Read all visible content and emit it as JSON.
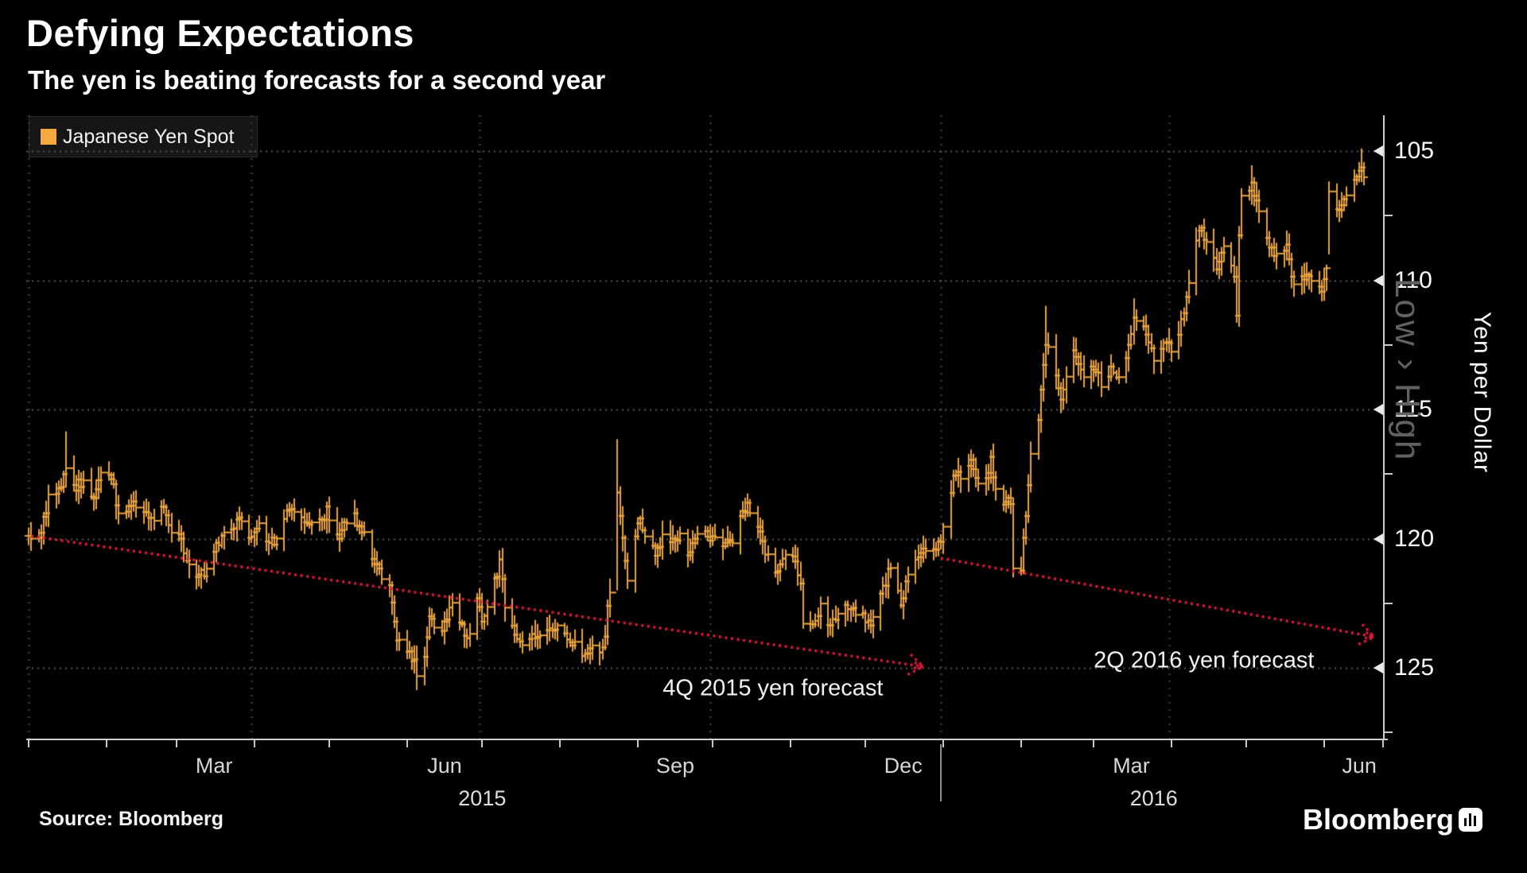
{
  "header": {
    "title": "Defying Expectations",
    "subtitle": "The yen is beating forecasts for a second year"
  },
  "legend": {
    "label": "Japanese Yen Spot"
  },
  "colors": {
    "background": "#000000",
    "series_orange": "#E8A33D",
    "legend_swatch": "#F5A93E",
    "forecast_red": "#E6173C",
    "grid_horizontal": "#5A5A5A",
    "grid_vertical": "#454545",
    "axis": "#CFCFCF"
  },
  "axes": {
    "y": {
      "title": "Yen per Dollar",
      "direction_label": "Low › High",
      "inverted": true,
      "ticks": [
        {
          "label": "105",
          "value": 105
        },
        {
          "label": "110",
          "value": 110
        },
        {
          "label": "115",
          "value": 115
        },
        {
          "label": "120",
          "value": 120
        },
        {
          "label": "125",
          "value": 125
        }
      ],
      "minor_tick_values": [
        107.5,
        112.5,
        117.5,
        122.5,
        127.5
      ]
    },
    "x": {
      "month_tick_days": [
        0,
        31,
        59,
        90,
        120,
        151,
        181,
        212,
        243,
        273,
        304,
        334,
        365,
        396,
        425,
        456,
        486,
        517
      ],
      "quarter_gridline_days": [
        0,
        89,
        180,
        272,
        364,
        455
      ],
      "month_labels": [
        {
          "label": "Mar",
          "mid_day": 74
        },
        {
          "label": "Jun",
          "mid_day": 166
        },
        {
          "label": "Sep",
          "mid_day": 258
        },
        {
          "label": "Dec",
          "mid_day": 349
        },
        {
          "label": "Mar",
          "mid_day": 440
        },
        {
          "label": "Jun",
          "mid_day": 531
        }
      ],
      "year_labels": [
        {
          "label": "2015",
          "mid_day": 181
        },
        {
          "label": "2016",
          "mid_day": 449
        }
      ],
      "year_divider_day": 364
    }
  },
  "annotations": {
    "forecast_2015_label": "4Q 2015 yen forecast",
    "forecast_2016_label": "2Q 2016 yen forecast"
  },
  "footer": {
    "source": "Source: Bloomberg",
    "brand": "Bloomberg"
  },
  "chart_data": {
    "type": "ohlc-bar",
    "title": "Defying Expectations",
    "subtitle": "The yen is beating forecasts for a second year",
    "series_name": "Japanese Yen Spot",
    "ylabel": "Yen per Dollar",
    "unit": "yen per dollar",
    "x_start": "2015-01-01",
    "x_end": "2016-06-17",
    "ylim": [
      103.6,
      127.6
    ],
    "y_axis_inverted_strong_yen_up": true,
    "grid": true,
    "anchors_day_close": [
      [
        0,
        119.9
      ],
      [
        2,
        120.4
      ],
      [
        5,
        119.7
      ],
      [
        8,
        118.4
      ],
      [
        11,
        118.3
      ],
      [
        15,
        117.3
      ],
      [
        18,
        118.0
      ],
      [
        22,
        117.8
      ],
      [
        26,
        118.3
      ],
      [
        29,
        117.5
      ],
      [
        33,
        117.6
      ],
      [
        36,
        119.0
      ],
      [
        41,
        118.7
      ],
      [
        44,
        118.6
      ],
      [
        47,
        118.9
      ],
      [
        50,
        119.4
      ],
      [
        54,
        118.8
      ],
      [
        57,
        119.6
      ],
      [
        61,
        120.0
      ],
      [
        64,
        121.1
      ],
      [
        68,
        121.4
      ],
      [
        71,
        121.3
      ],
      [
        75,
        120.3
      ],
      [
        78,
        119.9
      ],
      [
        82,
        119.5
      ],
      [
        85,
        119.2
      ],
      [
        89,
        120.1
      ],
      [
        92,
        119.6
      ],
      [
        96,
        120.1
      ],
      [
        99,
        120.0
      ],
      [
        103,
        119.1
      ],
      [
        106,
        118.9
      ],
      [
        110,
        119.4
      ],
      [
        113,
        119.2
      ],
      [
        117,
        119.4
      ],
      [
        119,
        118.9
      ],
      [
        121,
        120.1
      ],
      [
        124,
        119.9
      ],
      [
        127,
        119.4
      ],
      [
        130,
        119.2
      ],
      [
        133,
        119.7
      ],
      [
        137,
        120.7
      ],
      [
        140,
        121.3
      ],
      [
        144,
        121.7
      ],
      [
        147,
        123.9
      ],
      [
        150,
        124.1
      ],
      [
        154,
        124.8
      ],
      [
        155,
        125.3
      ],
      [
        158,
        124.6
      ],
      [
        160,
        122.9
      ],
      [
        162,
        123.5
      ],
      [
        165,
        123.4
      ],
      [
        169,
        122.6
      ],
      [
        172,
        123.3
      ],
      [
        176,
        123.8
      ],
      [
        179,
        122.5
      ],
      [
        181,
        123.1
      ],
      [
        184,
        122.3
      ],
      [
        188,
        121.0
      ],
      [
        190,
        122.5
      ],
      [
        194,
        123.9
      ],
      [
        197,
        124.2
      ],
      [
        201,
        123.6
      ],
      [
        204,
        123.9
      ],
      [
        208,
        123.6
      ],
      [
        211,
        123.2
      ],
      [
        215,
        124.1
      ],
      [
        218,
        124.2
      ],
      [
        222,
        124.4
      ],
      [
        225,
        124.2
      ],
      [
        229,
        124.4
      ],
      [
        232,
        122.0
      ],
      [
        235,
        118.4
      ],
      [
        237,
        119.9
      ],
      [
        239,
        121.7
      ],
      [
        243,
        119.2
      ],
      [
        246,
        119.8
      ],
      [
        250,
        120.5
      ],
      [
        253,
        120.0
      ],
      [
        257,
        119.9
      ],
      [
        260,
        120.0
      ],
      [
        264,
        120.6
      ],
      [
        267,
        119.9
      ],
      [
        271,
        119.9
      ],
      [
        273,
        120.0
      ],
      [
        277,
        120.2
      ],
      [
        281,
        120.3
      ],
      [
        284,
        119.2
      ],
      [
        287,
        118.8
      ],
      [
        291,
        119.5
      ],
      [
        295,
        120.8
      ],
      [
        298,
        121.4
      ],
      [
        302,
        120.8
      ],
      [
        305,
        120.6
      ],
      [
        308,
        121.6
      ],
      [
        309,
        123.1
      ],
      [
        313,
        123.2
      ],
      [
        316,
        122.6
      ],
      [
        320,
        123.4
      ],
      [
        323,
        122.9
      ],
      [
        327,
        122.6
      ],
      [
        330,
        122.8
      ],
      [
        334,
        123.1
      ],
      [
        336,
        123.3
      ],
      [
        340,
        122.3
      ],
      [
        344,
        121.0
      ],
      [
        348,
        122.6
      ],
      [
        351,
        121.3
      ],
      [
        355,
        120.9
      ],
      [
        358,
        120.3
      ],
      [
        363,
        120.3
      ],
      [
        365,
        119.6
      ],
      [
        369,
        117.7
      ],
      [
        372,
        117.5
      ],
      [
        376,
        117.0
      ],
      [
        379,
        117.8
      ],
      [
        383,
        117.6
      ],
      [
        384,
        116.9
      ],
      [
        387,
        118.8
      ],
      [
        391,
        118.6
      ],
      [
        392,
        118.8
      ],
      [
        393,
        121.1
      ],
      [
        396,
        121.1
      ],
      [
        399,
        117.9
      ],
      [
        400,
        116.9
      ],
      [
        403,
        115.4
      ],
      [
        406,
        112.4
      ],
      [
        409,
        113.3
      ],
      [
        412,
        114.5
      ],
      [
        414,
        113.9
      ],
      [
        417,
        112.9
      ],
      [
        421,
        113.9
      ],
      [
        425,
        113.3
      ],
      [
        428,
        114.0
      ],
      [
        432,
        113.5
      ],
      [
        435,
        113.8
      ],
      [
        439,
        112.7
      ],
      [
        441,
        111.4
      ],
      [
        445,
        111.9
      ],
      [
        449,
        113.1
      ],
      [
        453,
        112.4
      ],
      [
        456,
        112.6
      ],
      [
        460,
        111.7
      ],
      [
        463,
        110.3
      ],
      [
        466,
        108.4
      ],
      [
        468,
        108.1
      ],
      [
        471,
        108.8
      ],
      [
        474,
        109.4
      ],
      [
        477,
        108.8
      ],
      [
        481,
        109.8
      ],
      [
        482,
        111.5
      ],
      [
        483,
        108.1
      ],
      [
        484,
        106.9
      ],
      [
        488,
        106.4
      ],
      [
        491,
        107.2
      ],
      [
        494,
        108.4
      ],
      [
        498,
        109.1
      ],
      [
        502,
        108.6
      ],
      [
        505,
        110.2
      ],
      [
        509,
        109.8
      ],
      [
        512,
        110.0
      ],
      [
        516,
        110.6
      ],
      [
        518,
        109.6
      ],
      [
        519,
        106.6
      ],
      [
        523,
        107.4
      ],
      [
        526,
        106.9
      ],
      [
        530,
        106.0
      ],
      [
        532,
        105.6
      ],
      [
        533,
        105.9
      ]
    ],
    "spike_days": [
      {
        "day": 15,
        "strong": 115.85
      },
      {
        "day": 155,
        "weak": 125.86
      },
      {
        "day": 188,
        "strong": 120.45
      },
      {
        "day": 235,
        "strong": 116.15,
        "weak": 122.0
      },
      {
        "day": 393,
        "weak": 121.5,
        "strong": 118.4
      },
      {
        "day": 406,
        "strong": 110.99
      },
      {
        "day": 441,
        "strong": 110.7
      },
      {
        "day": 483,
        "weak": 111.8,
        "strong": 107.9
      },
      {
        "day": 488,
        "strong": 105.55
      },
      {
        "day": 519,
        "weak": 109.0
      },
      {
        "day": 532,
        "strong": 104.9
      }
    ],
    "forecast_lines": [
      {
        "label": "4Q 2015 yen forecast",
        "from_day": 1,
        "from_value": 119.9,
        "to_day": 357,
        "to_value": 124.95,
        "label_day": 297,
        "label_value": 125.8
      },
      {
        "label": "2Q 2016 yen forecast",
        "from_day": 364,
        "from_value": 120.75,
        "to_day": 537,
        "to_value": 123.8,
        "label_day": 469,
        "label_value": 124.72
      }
    ]
  }
}
